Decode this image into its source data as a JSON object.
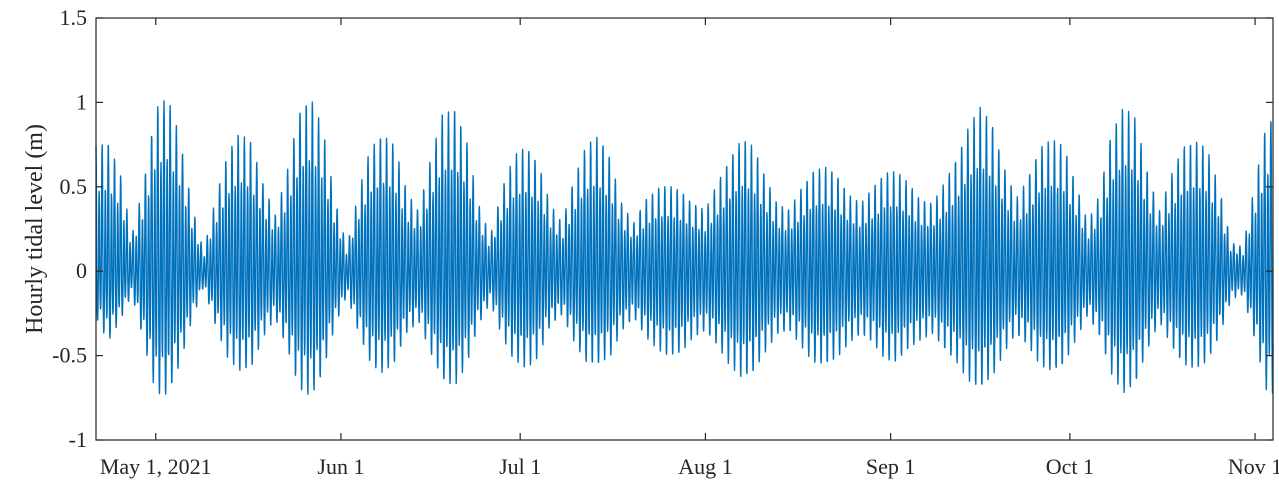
{
  "chart_data": {
    "type": "line",
    "title": "",
    "xlabel": "",
    "ylabel": "Hourly tidal level (m)",
    "xlim": [
      "2021-04-21",
      "2021-11-04"
    ],
    "ylim": [
      -1,
      1.5
    ],
    "grid": false,
    "x_ticks": [
      {
        "date": "2021-05-01",
        "label": "May 1, 2021"
      },
      {
        "date": "2021-06-01",
        "label": "Jun 1"
      },
      {
        "date": "2021-07-01",
        "label": "Jul 1"
      },
      {
        "date": "2021-08-01",
        "label": "Aug 1"
      },
      {
        "date": "2021-09-01",
        "label": "Sep 1"
      },
      {
        "date": "2021-10-01",
        "label": "Oct 1"
      },
      {
        "date": "2021-11-01",
        "label": "Nov 1"
      }
    ],
    "y_ticks": [
      {
        "value": -1,
        "label": "-1"
      },
      {
        "value": -0.5,
        "label": "-0.5"
      },
      {
        "value": 0,
        "label": "0"
      },
      {
        "value": 0.5,
        "label": "0.5"
      },
      {
        "value": 1,
        "label": "1"
      },
      {
        "value": 1.5,
        "label": "1.5"
      }
    ],
    "series": [
      {
        "color": "#0072BD",
        "envelope": {
          "x": [
            "2021-04-21",
            "2021-04-23",
            "2021-04-25",
            "2021-04-27",
            "2021-04-29",
            "2021-05-01",
            "2021-05-03",
            "2021-05-05",
            "2021-05-07",
            "2021-05-09",
            "2021-05-11",
            "2021-05-13",
            "2021-05-15",
            "2021-05-17",
            "2021-05-19",
            "2021-05-21",
            "2021-05-23",
            "2021-05-25",
            "2021-05-27",
            "2021-05-29",
            "2021-05-31",
            "2021-06-02",
            "2021-06-04",
            "2021-06-06",
            "2021-06-08",
            "2021-06-10",
            "2021-06-12",
            "2021-06-14",
            "2021-06-16",
            "2021-06-18",
            "2021-06-20",
            "2021-06-22",
            "2021-06-24",
            "2021-06-26",
            "2021-06-28",
            "2021-06-30",
            "2021-07-02",
            "2021-07-04",
            "2021-07-06",
            "2021-07-08",
            "2021-07-10",
            "2021-07-12",
            "2021-07-14",
            "2021-07-16",
            "2021-07-18",
            "2021-07-20",
            "2021-07-22",
            "2021-07-24",
            "2021-07-26",
            "2021-07-28",
            "2021-07-30",
            "2021-08-01",
            "2021-08-03",
            "2021-08-05",
            "2021-08-07",
            "2021-08-09",
            "2021-08-11",
            "2021-08-13",
            "2021-08-15",
            "2021-08-17",
            "2021-08-19",
            "2021-08-21",
            "2021-08-23",
            "2021-08-25",
            "2021-08-27",
            "2021-08-29",
            "2021-08-31",
            "2021-09-02",
            "2021-09-04",
            "2021-09-06",
            "2021-09-08",
            "2021-09-10",
            "2021-09-12",
            "2021-09-14",
            "2021-09-16",
            "2021-09-18",
            "2021-09-20",
            "2021-09-22",
            "2021-09-24",
            "2021-09-26",
            "2021-09-28",
            "2021-09-30",
            "2021-10-02",
            "2021-10-04",
            "2021-10-06",
            "2021-10-08",
            "2021-10-10",
            "2021-10-12",
            "2021-10-14",
            "2021-10-16",
            "2021-10-18",
            "2021-10-20",
            "2021-10-22",
            "2021-10-24",
            "2021-10-26",
            "2021-10-28",
            "2021-10-30",
            "2021-11-01",
            "2021-11-03"
          ],
          "upper": [
            0.78,
            0.81,
            0.62,
            0.22,
            0.55,
            1.02,
            1.08,
            0.85,
            0.42,
            0.12,
            0.45,
            0.74,
            0.86,
            0.8,
            0.55,
            0.35,
            0.62,
            1.0,
            1.08,
            0.88,
            0.45,
            0.15,
            0.5,
            0.78,
            0.86,
            0.78,
            0.5,
            0.38,
            0.7,
            0.98,
            1.02,
            0.82,
            0.42,
            0.22,
            0.52,
            0.72,
            0.78,
            0.68,
            0.42,
            0.3,
            0.58,
            0.78,
            0.84,
            0.72,
            0.42,
            0.3,
            0.45,
            0.52,
            0.53,
            0.5,
            0.42,
            0.38,
            0.55,
            0.7,
            0.82,
            0.78,
            0.6,
            0.42,
            0.38,
            0.52,
            0.62,
            0.65,
            0.6,
            0.48,
            0.42,
            0.52,
            0.62,
            0.62,
            0.55,
            0.45,
            0.42,
            0.55,
            0.7,
            0.9,
            1.02,
            0.92,
            0.65,
            0.45,
            0.58,
            0.78,
            0.82,
            0.78,
            0.55,
            0.3,
            0.48,
            0.88,
            1.03,
            0.95,
            0.62,
            0.38,
            0.6,
            0.78,
            0.82,
            0.76,
            0.52,
            0.18,
            0.15,
            0.55,
            0.95
          ],
          "lower": [
            -0.3,
            -0.45,
            -0.32,
            -0.15,
            -0.45,
            -0.78,
            -0.8,
            -0.6,
            -0.32,
            -0.1,
            -0.35,
            -0.55,
            -0.64,
            -0.62,
            -0.42,
            -0.3,
            -0.5,
            -0.75,
            -0.8,
            -0.65,
            -0.35,
            -0.15,
            -0.4,
            -0.6,
            -0.65,
            -0.58,
            -0.4,
            -0.32,
            -0.52,
            -0.7,
            -0.74,
            -0.6,
            -0.35,
            -0.2,
            -0.42,
            -0.58,
            -0.63,
            -0.55,
            -0.35,
            -0.28,
            -0.45,
            -0.58,
            -0.6,
            -0.55,
            -0.38,
            -0.3,
            -0.42,
            -0.5,
            -0.55,
            -0.52,
            -0.42,
            -0.38,
            -0.48,
            -0.6,
            -0.68,
            -0.65,
            -0.52,
            -0.4,
            -0.38,
            -0.48,
            -0.58,
            -0.6,
            -0.56,
            -0.46,
            -0.4,
            -0.46,
            -0.56,
            -0.58,
            -0.5,
            -0.44,
            -0.4,
            -0.5,
            -0.58,
            -0.7,
            -0.75,
            -0.68,
            -0.52,
            -0.4,
            -0.48,
            -0.6,
            -0.64,
            -0.6,
            -0.44,
            -0.28,
            -0.42,
            -0.66,
            -0.78,
            -0.72,
            -0.5,
            -0.32,
            -0.48,
            -0.6,
            -0.62,
            -0.58,
            -0.42,
            -0.18,
            -0.15,
            -0.45,
            -0.78
          ]
        }
      }
    ]
  }
}
